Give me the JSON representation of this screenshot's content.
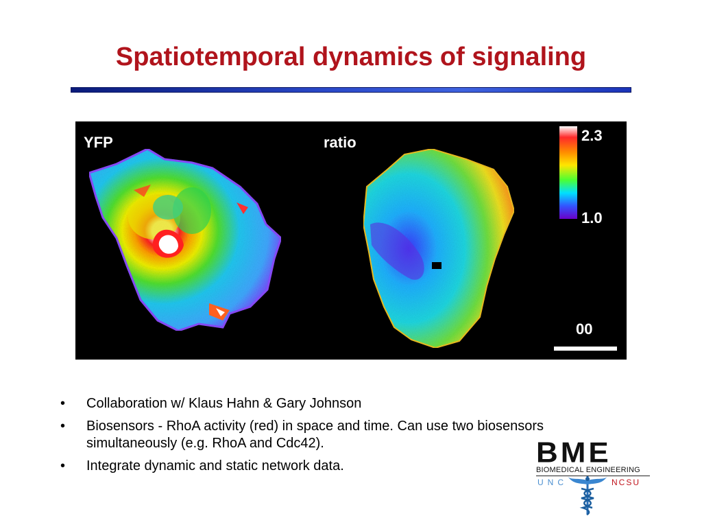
{
  "slide": {
    "title": "Spatiotemporal dynamics of signaling"
  },
  "figure": {
    "left_panel_label": "YFP",
    "right_panel_label": "ratio",
    "colorbar": {
      "max_label": "2.3",
      "min_label": "1.0",
      "gradient_colors": [
        "#ffffff",
        "#ff2a2a",
        "#ff8c00",
        "#ffe600",
        "#4cff33",
        "#00e0ff",
        "#3355ff",
        "#6a00c8"
      ]
    },
    "time_label": "00"
  },
  "bullets": [
    {
      "marker": "•",
      "text": "Collaboration w/ Klaus Hahn & Gary Johnson"
    },
    {
      "marker": "•",
      "text": "Biosensors - RhoA activity (red) in space and time.  Can use two biosensors simultaneously  (e.g. RhoA and Cdc42)."
    },
    {
      "marker": "•",
      "text": "Integrate dynamic and static network data."
    }
  ],
  "logo": {
    "wordmark": "BME",
    "subtitle": "BIOMEDICAL ENGINEERING",
    "left_school": "UNC",
    "right_school": "NCSU",
    "emblem_icon": "caduceus-icon"
  }
}
